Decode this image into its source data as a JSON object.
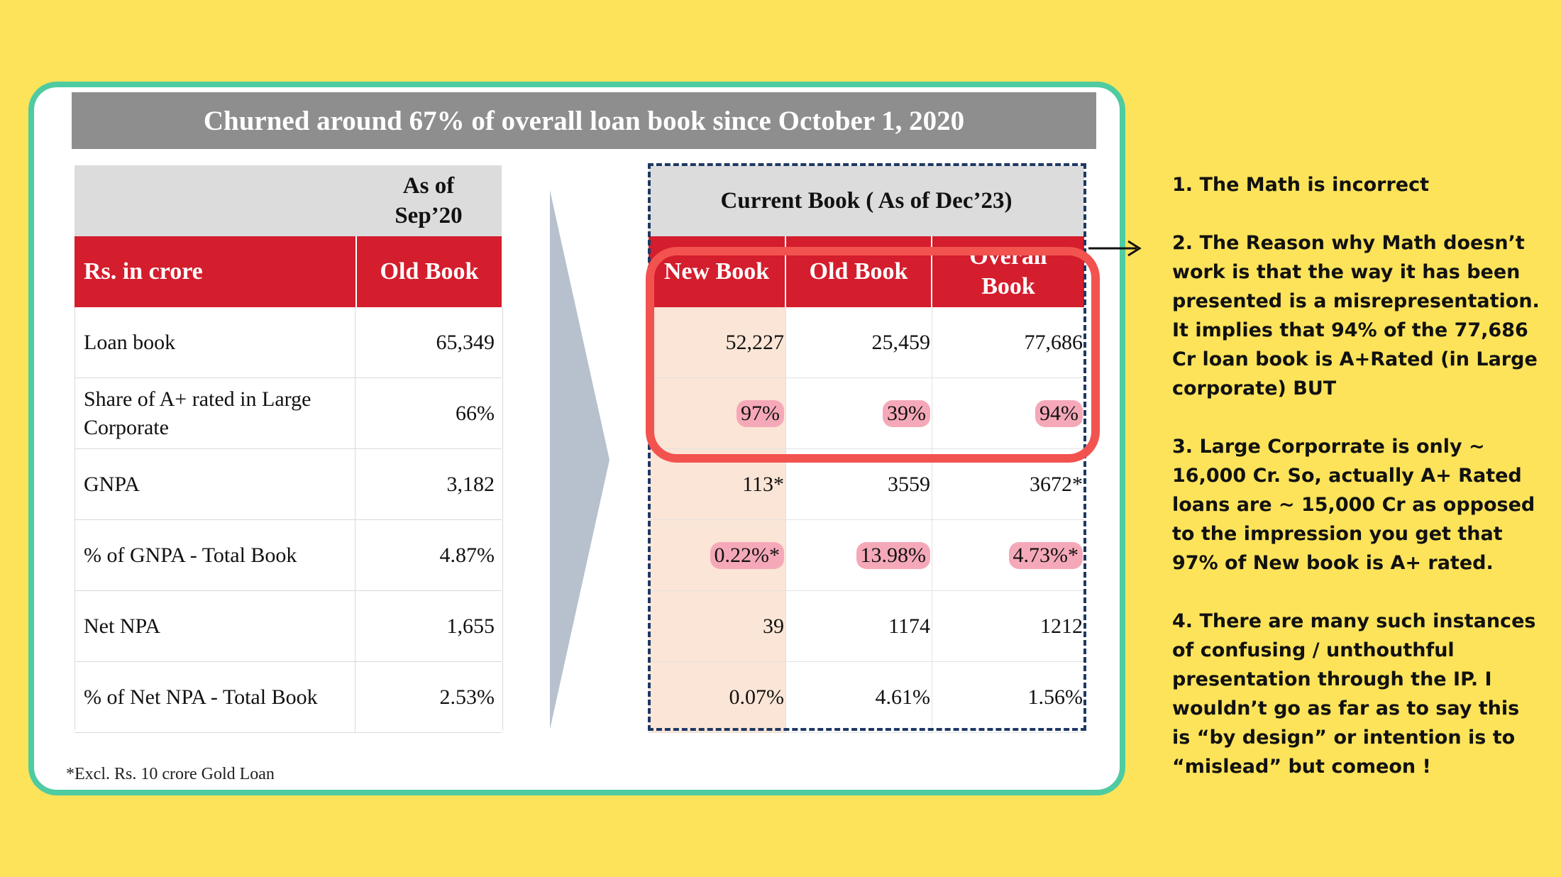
{
  "slide": {
    "banner_title": "Churned around 67% of overall loan book since October 1, 2020",
    "footnote": "*Excl. Rs. 10 crore Gold Loan"
  },
  "left_table": {
    "as_of_line1": "As of",
    "as_of_line2": "Sep’20",
    "header_label": "Rs. in crore",
    "header_col": "Old Book",
    "rows": [
      {
        "label": "Loan book",
        "value": "65,349"
      },
      {
        "label": "Share of A+ rated in Large Corporate",
        "value": "66%"
      },
      {
        "label": "GNPA",
        "value": "3,182"
      },
      {
        "label": "% of GNPA - Total Book",
        "value": "4.87%"
      },
      {
        "label": "Net NPA",
        "value": "1,655"
      },
      {
        "label": "% of Net NPA - Total Book",
        "value": "2.53%"
      }
    ]
  },
  "right_table": {
    "title": "Current Book ( As of Dec’23)",
    "col_new": "New Book",
    "col_old": "Old Book",
    "col_overall_line1": "Overall",
    "col_overall_line2": "Book",
    "rows": [
      {
        "new": "52,227",
        "old": "25,459",
        "overall": "77,686"
      },
      {
        "new": "97%",
        "old": "39%",
        "overall": "94%"
      },
      {
        "new": "113*",
        "old": "3559",
        "overall": "3672*"
      },
      {
        "new": "0.22%*",
        "old": "13.98%",
        "overall": "4.73%*"
      },
      {
        "new": "39",
        "old": "1174",
        "overall": "1212"
      },
      {
        "new": "0.07%",
        "old": "4.61%",
        "overall": "1.56%"
      }
    ]
  },
  "notes": [
    "1. The Math is incorrect",
    "2. The Reason why Math doesn’t work is that the way it has been presented is a misrepresentation. It implies that 94% of the 77,686 Cr loan book is A+Rated (in Large corporate) BUT",
    "3. Large Corporrate is only ~ 16,000 Cr. So, actually A+ Rated loans are ~ 15,000 Cr as opposed to the impression you get that 97% of New book is A+ rated.",
    "4. There are many such instances of confusing / unthouthful presentation through the IP. I wouldn’t go as far as to say this is “by design” or intention is to “mislead” but comeon !"
  ],
  "colors": {
    "background": "#fde35a",
    "card_border": "#4ecba1",
    "header_red": "#d41d2d",
    "banner_gray": "#8e8e8e",
    "highlight_pink": "#f5a9b8",
    "callout_red": "#f2534f",
    "dashed_navy": "#1f3864"
  }
}
